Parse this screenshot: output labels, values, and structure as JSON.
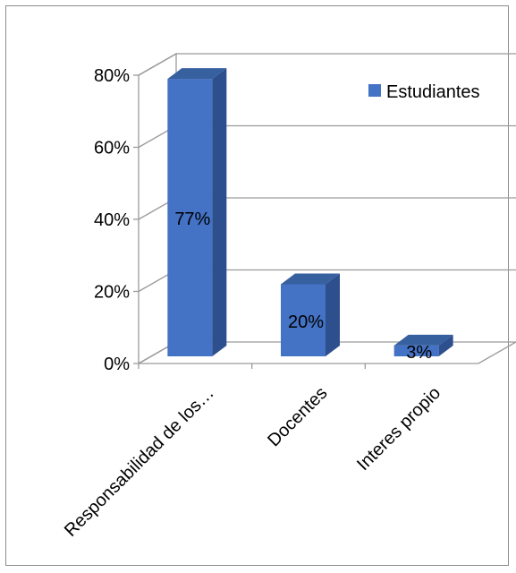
{
  "chart_data": {
    "type": "bar",
    "style": "3d-column",
    "categories": [
      "Responsabilidad de los…",
      "Docentes",
      "Interes propio"
    ],
    "series": [
      {
        "name": "Estudiantes",
        "values": [
          77,
          20,
          3
        ],
        "color": "#4472C4"
      }
    ],
    "data_labels": [
      "77%",
      "20%",
      "3%"
    ],
    "y_ticks": [
      "0%",
      "20%",
      "40%",
      "60%",
      "80%"
    ],
    "ylim": [
      0,
      80
    ],
    "grid": true,
    "legend_position": "top-right"
  }
}
